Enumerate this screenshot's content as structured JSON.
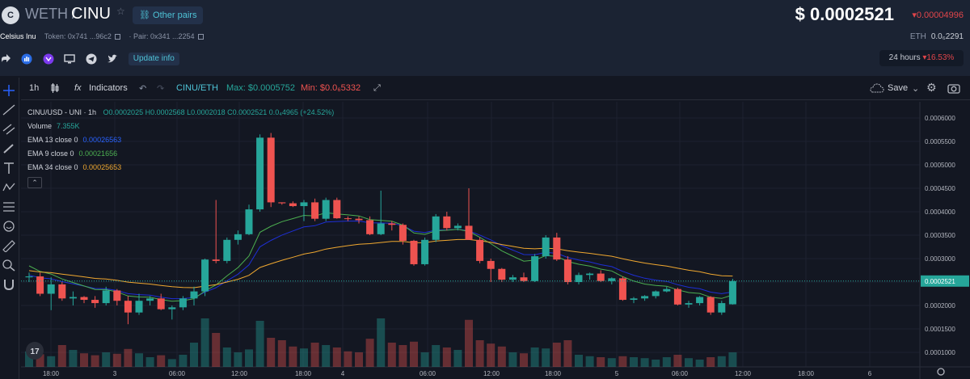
{
  "header": {
    "logo_letter": "C",
    "base_symbol": "WETH",
    "separator": "/",
    "quote_symbol": "CINU",
    "other_pairs_label": "Other pairs",
    "token_name": "Celsius Inu",
    "token_label": "Token: 0x741 ...96c2",
    "pair_label": "· Pair: 0x341 ...2254",
    "update_info_label": "Update info",
    "price": "$ 0.0002521",
    "price_change": "▾0.00004996",
    "eth_label": "ETH",
    "eth_value": "0.0₆2291",
    "period_label": "24 hours",
    "period_change": "▾16.53%"
  },
  "toolbar": {
    "interval": "1h",
    "indicators_label": "Indicators",
    "pair_label": "CINU/ETH",
    "max_label": "Max: $0.0005752",
    "min_label": "Min: $0.0₆5332",
    "save_label": "Save"
  },
  "colors": {
    "up": "#26a69a",
    "down": "#ef5350",
    "ema13": "#1e2fd6",
    "ema9": "#4caf50",
    "ema34": "#f0a830",
    "accent": "#4ec3d6"
  },
  "legend": {
    "title": "CINU/USD - UNI · 1h",
    "ohlc": "O0.0002025 H0.0002568 L0.0002018 C0.0002521 0.0₄4965 (+24.52%)",
    "volume_label": "Volume",
    "volume_value": "7.355K",
    "ema13_label": "EMA 13 close 0",
    "ema13_value": "0.00026563",
    "ema9_label": "EMA 9 close 0",
    "ema9_value": "0.00021656",
    "ema34_label": "EMA 34 close 0",
    "ema34_value": "0.00025653"
  },
  "chart_data": {
    "type": "candlestick",
    "ylim": [
      5e-05,
      0.0006
    ],
    "y_ticks": [
      "0.0006000",
      "0.0005500",
      "0.0005000",
      "0.0004500",
      "0.0004000",
      "0.0003500",
      "0.0003000",
      "0.0002500",
      "0.0002000",
      "0.0001500",
      "0.0001000"
    ],
    "y_tick_values": [
      0.0006,
      0.00055,
      0.0005,
      0.00045,
      0.0004,
      0.00035,
      0.0003,
      0.00025,
      0.0002,
      0.00015,
      0.0001
    ],
    "x_ticks": [
      "18:00",
      "3",
      "06:00",
      "12:00",
      "18:00",
      "4",
      "06:00",
      "12:00",
      "18:00",
      "5",
      "06:00",
      "12:00",
      "18:00",
      "6"
    ],
    "last_price_label": "0.0002521",
    "last_price": 0.0002521,
    "candles": [
      [
        0.00026,
        0.00027,
        0.00025,
        0.000262
      ],
      [
        0.000262,
        0.00027,
        0.00022,
        0.000225
      ],
      [
        0.000225,
        0.00026,
        0.00019,
        0.000245
      ],
      [
        0.000245,
        0.00025,
        0.00021,
        0.000215
      ],
      [
        0.000215,
        0.00023,
        0.0002,
        0.000218
      ],
      [
        0.000218,
        0.00022,
        0.000205,
        0.000212
      ],
      [
        0.000212,
        0.00022,
        0.000195,
        0.000205
      ],
      [
        0.000205,
        0.00024,
        0.0002,
        0.000232
      ],
      [
        0.000232,
        0.000235,
        0.0002,
        0.00021
      ],
      [
        0.00021,
        0.00022,
        0.00016,
        0.000185
      ],
      [
        0.000185,
        0.000225,
        0.00018,
        0.00021
      ],
      [
        0.00021,
        0.00022,
        0.0002,
        0.000215
      ],
      [
        0.000215,
        0.000225,
        0.00019,
        0.000192
      ],
      [
        0.000192,
        0.0002,
        0.00017,
        0.000196
      ],
      [
        0.000196,
        0.00022,
        0.00019,
        0.000215
      ],
      [
        0.000215,
        0.00024,
        0.0002,
        0.00023
      ],
      [
        0.00023,
        0.0003,
        0.00022,
        0.000298
      ],
      [
        0.000298,
        0.000425,
        0.00029,
        0.000295
      ],
      [
        0.000295,
        0.000345,
        0.00029,
        0.00034
      ],
      [
        0.00034,
        0.00036,
        0.00033,
        0.000352
      ],
      [
        0.000352,
        0.000415,
        0.00035,
        0.000405
      ],
      [
        0.000405,
        0.000565,
        0.0004,
        0.000558
      ],
      [
        0.000558,
        0.000568,
        0.00041,
        0.00042
      ],
      [
        0.00042,
        0.00042,
        0.000415,
        0.000418
      ],
      [
        0.000418,
        0.000422,
        0.00041,
        0.000412
      ],
      [
        0.000412,
        0.000425,
        0.00038,
        0.00042
      ],
      [
        0.00042,
        0.000428,
        0.00038,
        0.000385
      ],
      [
        0.000385,
        0.00043,
        0.00038,
        0.000425
      ],
      [
        0.000425,
        0.00043,
        0.000385,
        0.000386
      ],
      [
        0.000386,
        0.00039,
        0.00038,
        0.000385
      ],
      [
        0.000385,
        0.00039,
        0.000375,
        0.000382
      ],
      [
        0.000382,
        0.00039,
        0.00035,
        0.000352
      ],
      [
        0.000352,
        0.000445,
        0.00035,
        0.000375
      ],
      [
        0.000375,
        0.00038,
        0.00036,
        0.000372
      ],
      [
        0.000372,
        0.000375,
        0.00033,
        0.000338
      ],
      [
        0.000338,
        0.00034,
        0.000285,
        0.000288
      ],
      [
        0.000288,
        0.000345,
        0.000285,
        0.00034
      ],
      [
        0.00034,
        0.000395,
        0.000335,
        0.00039
      ],
      [
        0.00039,
        0.0004,
        0.00036,
        0.000365
      ],
      [
        0.000365,
        0.000375,
        0.00036,
        0.00037
      ],
      [
        0.00037,
        0.00045,
        0.00034,
        0.00034
      ],
      [
        0.00034,
        0.000345,
        0.00029,
        0.000295
      ],
      [
        0.000295,
        0.0003,
        0.00025,
        0.000278
      ],
      [
        0.000278,
        0.00028,
        0.00025,
        0.000255
      ],
      [
        0.000255,
        0.000265,
        0.00025,
        0.00026
      ],
      [
        0.00026,
        0.00027,
        0.00025,
        0.000252
      ],
      [
        0.000252,
        0.00031,
        0.00025,
        0.000305
      ],
      [
        0.000305,
        0.00035,
        0.0003,
        0.000345
      ],
      [
        0.000345,
        0.000355,
        0.000295,
        0.000298
      ],
      [
        0.000298,
        0.000305,
        0.000245,
        0.00025
      ],
      [
        0.00025,
        0.00027,
        0.000245,
        0.000265
      ],
      [
        0.000265,
        0.00027,
        0.000255,
        0.000268
      ],
      [
        0.000268,
        0.000275,
        0.00025,
        0.000252
      ],
      [
        0.000252,
        0.00026,
        0.000245,
        0.000258
      ],
      [
        0.000258,
        0.000262,
        0.00021,
        0.000212
      ],
      [
        0.000212,
        0.000218,
        0.000205,
        0.000215
      ],
      [
        0.000215,
        0.000222,
        0.00021,
        0.00022
      ],
      [
        0.00022,
        0.000232,
        0.000215,
        0.00023
      ],
      [
        0.00023,
        0.00024,
        0.000228,
        0.000235
      ],
      [
        0.000235,
        0.000238,
        0.0002,
        0.000202
      ],
      [
        0.000202,
        0.00021,
        0.000195,
        0.000205
      ],
      [
        0.000205,
        0.00022,
        0.0002,
        0.000218
      ],
      [
        0.000218,
        0.00022,
        0.00018,
        0.000185
      ],
      [
        0.000185,
        0.00021,
        0.00018,
        0.000205
      ],
      [
        0.0002025,
        0.0002568,
        0.0002018,
        0.0002521
      ]
    ],
    "volume": [
      0.32,
      0.26,
      0.22,
      0.45,
      0.35,
      0.28,
      0.24,
      0.3,
      0.27,
      0.37,
      0.28,
      0.2,
      0.24,
      0.16,
      0.25,
      0.5,
      1.0,
      0.7,
      0.4,
      0.3,
      0.36,
      0.95,
      0.6,
      0.55,
      0.42,
      0.38,
      0.5,
      0.45,
      0.4,
      0.32,
      0.3,
      0.58,
      1.0,
      0.5,
      0.45,
      0.52,
      0.3,
      0.45,
      0.4,
      0.35,
      0.97,
      0.55,
      0.48,
      0.42,
      0.3,
      0.28,
      0.4,
      0.38,
      0.5,
      0.55,
      0.25,
      0.22,
      0.2,
      0.18,
      0.22,
      0.2,
      0.18,
      0.15,
      0.2,
      0.25,
      0.18,
      0.15,
      0.2,
      0.22,
      0.3
    ]
  }
}
